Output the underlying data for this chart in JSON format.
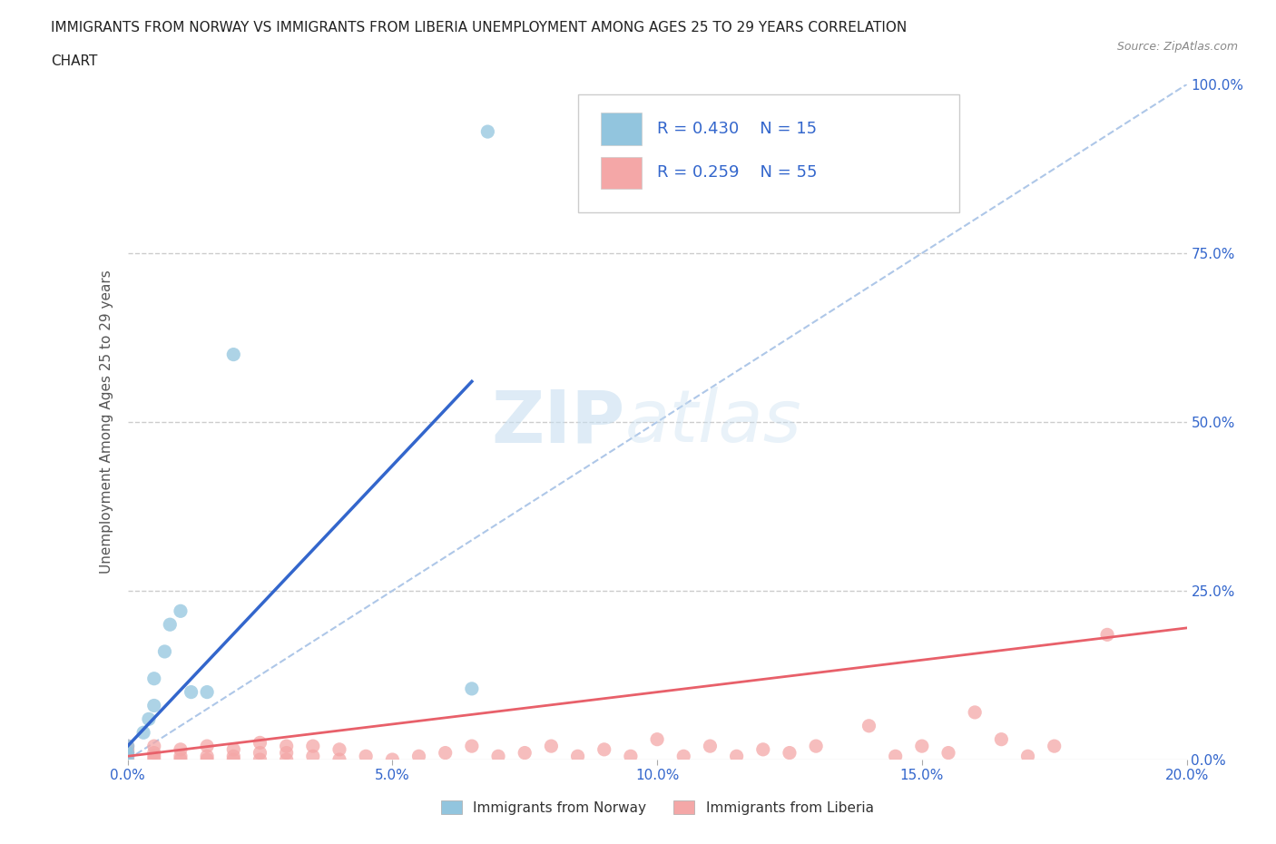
{
  "title_line1": "IMMIGRANTS FROM NORWAY VS IMMIGRANTS FROM LIBERIA UNEMPLOYMENT AMONG AGES 25 TO 29 YEARS CORRELATION",
  "title_line2": "CHART",
  "source": "Source: ZipAtlas.com",
  "ylabel": "Unemployment Among Ages 25 to 29 years",
  "xlabel_ticks": [
    "0.0%",
    "5.0%",
    "10.0%",
    "15.0%",
    "20.0%"
  ],
  "ylabel_ticks": [
    "0.0%",
    "25.0%",
    "50.0%",
    "75.0%",
    "100.0%"
  ],
  "xlim": [
    0.0,
    0.2
  ],
  "ylim": [
    0.0,
    1.0
  ],
  "norway_scatter_x": [
    0.0,
    0.0,
    0.0,
    0.003,
    0.004,
    0.005,
    0.005,
    0.007,
    0.008,
    0.01,
    0.012,
    0.015,
    0.02,
    0.065,
    0.068
  ],
  "norway_scatter_y": [
    0.005,
    0.01,
    0.02,
    0.04,
    0.06,
    0.08,
    0.12,
    0.16,
    0.2,
    0.22,
    0.1,
    0.1,
    0.6,
    0.105,
    0.93
  ],
  "liberia_scatter_x": [
    0.0,
    0.0,
    0.0,
    0.0,
    0.0,
    0.005,
    0.005,
    0.005,
    0.005,
    0.01,
    0.01,
    0.01,
    0.015,
    0.015,
    0.015,
    0.02,
    0.02,
    0.02,
    0.025,
    0.025,
    0.025,
    0.03,
    0.03,
    0.03,
    0.035,
    0.035,
    0.04,
    0.04,
    0.045,
    0.05,
    0.055,
    0.06,
    0.065,
    0.07,
    0.075,
    0.08,
    0.085,
    0.09,
    0.095,
    0.1,
    0.105,
    0.11,
    0.115,
    0.12,
    0.125,
    0.13,
    0.14,
    0.145,
    0.15,
    0.155,
    0.16,
    0.165,
    0.17,
    0.175,
    0.185
  ],
  "liberia_scatter_y": [
    0.0,
    0.005,
    0.01,
    0.015,
    0.02,
    0.0,
    0.005,
    0.01,
    0.02,
    0.0,
    0.005,
    0.015,
    0.0,
    0.005,
    0.02,
    0.0,
    0.005,
    0.015,
    0.0,
    0.01,
    0.025,
    0.0,
    0.01,
    0.02,
    0.005,
    0.02,
    0.0,
    0.015,
    0.005,
    0.0,
    0.005,
    0.01,
    0.02,
    0.005,
    0.01,
    0.02,
    0.005,
    0.015,
    0.005,
    0.03,
    0.005,
    0.02,
    0.005,
    0.015,
    0.01,
    0.02,
    0.05,
    0.005,
    0.02,
    0.01,
    0.07,
    0.03,
    0.005,
    0.02,
    0.185
  ],
  "norway_color": "#92c5de",
  "liberia_color": "#f4a7a7",
  "norway_line_color": "#3366cc",
  "liberia_line_color": "#e8606a",
  "diagonal_color": "#aec7e8",
  "norway_trend_x": [
    0.0,
    0.065
  ],
  "norway_trend_y": [
    0.02,
    0.56
  ],
  "liberia_trend_x": [
    0.0,
    0.2
  ],
  "liberia_trend_y": [
    0.005,
    0.195
  ],
  "R_norway": 0.43,
  "N_norway": 15,
  "R_liberia": 0.259,
  "N_liberia": 55,
  "legend_label_norway": "Immigrants from Norway",
  "legend_label_liberia": "Immigrants from Liberia",
  "watermark_zip": "ZIP",
  "watermark_atlas": "atlas",
  "background_color": "#ffffff",
  "grid_color": "#cccccc",
  "title_color": "#222222",
  "axis_label_color": "#555555",
  "tick_color": "#3366cc",
  "legend_r_color": "#3366cc"
}
